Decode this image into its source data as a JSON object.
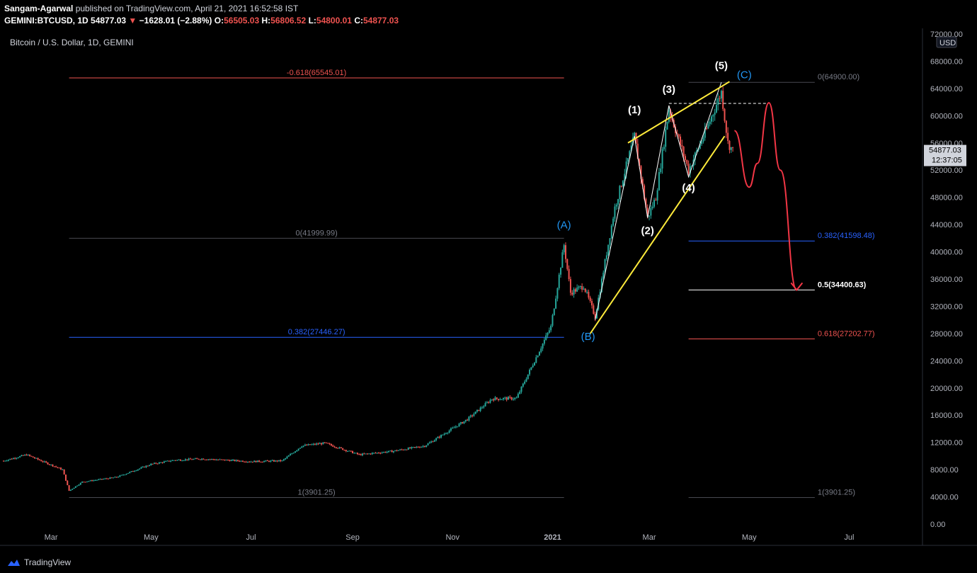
{
  "header": {
    "author": "Sangam-Agarwal",
    "published": "published on TradingView.com, April 21, 2021 16:52:58 IST",
    "symbol": "GEMINI:BTCUSD, 1D",
    "last": "54877.03",
    "change": "−1628.01 (−2.88%)",
    "o_label": "O:",
    "o_value": "56505.03",
    "h_label": "H:",
    "h_value": "56806.52",
    "l_label": "L:",
    "l_value": "54800.01",
    "c_label": "C:",
    "c_value": "54877.03"
  },
  "footer": {
    "brand": "TradingView"
  },
  "colors": {
    "background": "#000000",
    "up": "#26a69a",
    "down": "#ef5350",
    "fib_red": "#ef5350",
    "fib_blue": "#2962ff",
    "fib_gray": "#787b86",
    "wave_yellow": "#ffeb3b",
    "wave_label_blue": "#2196f3",
    "projection": "#f23645"
  },
  "chart_data": {
    "type": "candlestick",
    "title": "Bitcoin / U.S. Dollar, 1D, GEMINI",
    "currency_badge": "USD",
    "last_price_label": "54877.03",
    "countdown_label": "12:37:05",
    "y_ticks": [
      "72000.00",
      "68000.00",
      "64000.00",
      "60000.00",
      "56000.00",
      "52000.00",
      "48000.00",
      "44000.00",
      "40000.00",
      "36000.00",
      "32000.00",
      "28000.00",
      "24000.00",
      "20000.00",
      "16000.00",
      "12000.00",
      "8000.00",
      "4000.00",
      "0.00"
    ],
    "ylim": [
      0,
      72000
    ],
    "x_ticks": [
      "Mar",
      "May",
      "Jul",
      "Sep",
      "Nov",
      "2021",
      "Mar",
      "May",
      "Jul"
    ],
    "price_path": [
      [
        "2020-02-01",
        9300
      ],
      [
        "2020-02-15",
        10200
      ],
      [
        "2020-03-01",
        8700
      ],
      [
        "2020-03-08",
        8000
      ],
      [
        "2020-03-12",
        4900
      ],
      [
        "2020-03-20",
        6200
      ],
      [
        "2020-04-10",
        6900
      ],
      [
        "2020-05-01",
        8800
      ],
      [
        "2020-05-15",
        9400
      ],
      [
        "2020-06-01",
        9600
      ],
      [
        "2020-07-01",
        9200
      ],
      [
        "2020-07-20",
        9300
      ],
      [
        "2020-08-01",
        11500
      ],
      [
        "2020-08-15",
        11900
      ],
      [
        "2020-09-05",
        10200
      ],
      [
        "2020-09-25",
        10700
      ],
      [
        "2020-10-15",
        11500
      ],
      [
        "2020-10-25",
        13000
      ],
      [
        "2020-11-10",
        15400
      ],
      [
        "2020-11-25",
        18400
      ],
      [
        "2020-12-10",
        18500
      ],
      [
        "2020-12-20",
        23500
      ],
      [
        "2020-12-31",
        29000
      ],
      [
        "2021-01-08",
        41000
      ],
      [
        "2021-01-12",
        34000
      ],
      [
        "2021-01-20",
        35000
      ],
      [
        "2021-01-27",
        30500
      ],
      [
        "2021-02-08",
        46500
      ],
      [
        "2021-02-20",
        57000
      ],
      [
        "2021-02-28",
        45000
      ],
      [
        "2021-03-05",
        48000
      ],
      [
        "2021-03-13",
        61000
      ],
      [
        "2021-03-25",
        52000
      ],
      [
        "2021-04-05",
        58000
      ],
      [
        "2021-04-14",
        63500
      ],
      [
        "2021-04-18",
        56000
      ],
      [
        "2021-04-21",
        54877
      ]
    ],
    "fib_left": [
      {
        "label": "-0.618(65545.01)",
        "level": 65545.01,
        "color": "red"
      },
      {
        "label": "0(41999.99)",
        "level": 41999.99,
        "color": "gray"
      },
      {
        "label": "0.382(27446.27)",
        "level": 27446.27,
        "color": "blue"
      },
      {
        "label": "1(3901.25)",
        "level": 3901.25,
        "color": "gray"
      }
    ],
    "fib_right": [
      {
        "label": "0(64900.00)",
        "level": 64900.0,
        "color": "gray"
      },
      {
        "label": "0.382(41598.48)",
        "level": 41598.48,
        "color": "blue"
      },
      {
        "label": "0.5(34400.63)",
        "level": 34400.63,
        "color": "white"
      },
      {
        "label": "0.618(27202.77)",
        "level": 27202.77,
        "color": "red"
      },
      {
        "label": "1(3901.25)",
        "level": 3901.25,
        "color": "gray"
      }
    ],
    "wave_labels": {
      "A": {
        "text": "(A)",
        "x": "2021-01-08",
        "y": 42000
      },
      "B": {
        "text": "(B)",
        "x": "2021-01-27",
        "y": 28500
      },
      "C": {
        "text": "(C)",
        "x": "2021-04-28",
        "y": 65500
      },
      "w1": {
        "text": "(1)",
        "x": "2021-02-20",
        "y": 58500
      },
      "w2": {
        "text": "(2)",
        "x": "2021-02-28",
        "y": 44500
      },
      "w3": {
        "text": "(3)",
        "x": "2021-03-13",
        "y": 61500
      },
      "w4": {
        "text": "(4)",
        "x": "2021-03-25",
        "y": 51000
      },
      "w5": {
        "text": "(5)",
        "x": "2021-04-14",
        "y": 65000
      }
    },
    "wave_path": [
      [
        "2021-01-27",
        30000
      ],
      [
        "2021-02-20",
        57000
      ],
      [
        "2021-02-28",
        45000
      ],
      [
        "2021-03-13",
        61500
      ],
      [
        "2021-03-25",
        51000
      ],
      [
        "2021-04-14",
        64900
      ]
    ],
    "upper_trendline": [
      [
        "2021-02-16",
        56000
      ],
      [
        "2021-04-19",
        65000
      ]
    ],
    "lower_trendline": [
      [
        "2021-01-24",
        28000
      ],
      [
        "2021-04-16",
        57000
      ]
    ],
    "resistance_dashed": {
      "level": 61800,
      "from": "2021-03-13",
      "to": "2021-05-12"
    },
    "projection_path": [
      [
        "2021-04-22",
        57800
      ],
      [
        "2021-05-01",
        49500
      ],
      [
        "2021-05-06",
        53000
      ],
      [
        "2021-05-13",
        61900
      ],
      [
        "2021-05-20",
        52000
      ],
      [
        "2021-05-30",
        34400
      ]
    ]
  }
}
